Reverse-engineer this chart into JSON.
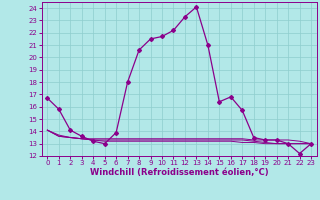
{
  "xlabel": "Windchill (Refroidissement éolien,°C)",
  "bg_color": "#b2e8e8",
  "grid_color": "#8ecece",
  "line_color": "#8b008b",
  "x": [
    0,
    1,
    2,
    3,
    4,
    5,
    6,
    7,
    8,
    9,
    10,
    11,
    12,
    13,
    14,
    15,
    16,
    17,
    18,
    19,
    20,
    21,
    22,
    23
  ],
  "y_main": [
    16.7,
    15.8,
    14.1,
    13.6,
    13.2,
    13.0,
    13.9,
    18.0,
    20.6,
    21.5,
    21.7,
    22.2,
    23.3,
    24.1,
    21.0,
    16.4,
    16.8,
    15.7,
    13.5,
    13.3,
    13.3,
    13.0,
    12.2,
    13.0
  ],
  "flat_vals": [
    14.1,
    13.6,
    13.5,
    13.4,
    13.4,
    13.4,
    13.4,
    13.4,
    13.4,
    13.4,
    13.4,
    13.4,
    13.4,
    13.4,
    13.4,
    13.4,
    13.4,
    13.4,
    13.3,
    13.3,
    13.3,
    13.3,
    13.2,
    13.0
  ],
  "flat_vals2": [
    14.1,
    13.6,
    13.5,
    13.4,
    13.3,
    13.3,
    13.3,
    13.3,
    13.3,
    13.3,
    13.3,
    13.3,
    13.3,
    13.3,
    13.3,
    13.3,
    13.3,
    13.3,
    13.2,
    13.1,
    13.0,
    13.0,
    13.0,
    13.0
  ],
  "flat_vals3": [
    14.1,
    13.7,
    13.5,
    13.4,
    13.3,
    13.2,
    13.2,
    13.2,
    13.2,
    13.2,
    13.2,
    13.2,
    13.2,
    13.2,
    13.2,
    13.2,
    13.2,
    13.1,
    13.1,
    13.0,
    13.0,
    13.0,
    13.0,
    13.0
  ],
  "ylim": [
    12,
    24.5
  ],
  "xlim": [
    -0.5,
    23.5
  ],
  "yticks": [
    12,
    13,
    14,
    15,
    16,
    17,
    18,
    19,
    20,
    21,
    22,
    23,
    24
  ],
  "xticks": [
    0,
    1,
    2,
    3,
    4,
    5,
    6,
    7,
    8,
    9,
    10,
    11,
    12,
    13,
    14,
    15,
    16,
    17,
    18,
    19,
    20,
    21,
    22,
    23
  ],
  "tick_fontsize": 5,
  "xlabel_fontsize": 6
}
